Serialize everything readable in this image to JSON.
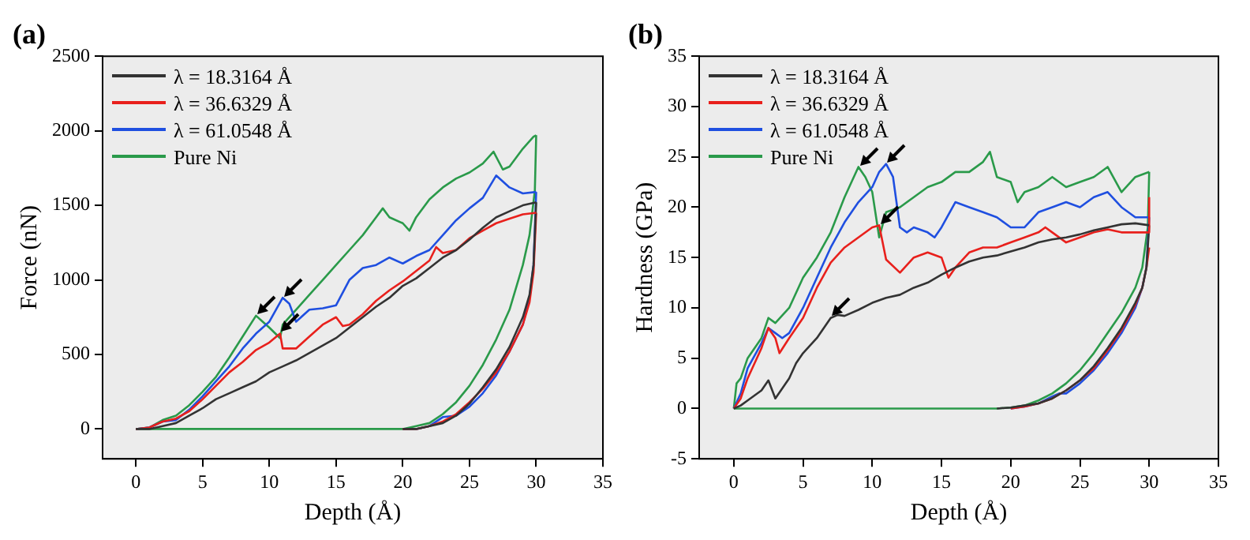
{
  "chart_data": [
    {
      "type": "line",
      "title": "(a)",
      "xlabel": "Depth (Å)",
      "ylabel": "Force (nN)",
      "xlim": [
        -2.5,
        35
      ],
      "xticks": [
        0,
        5,
        10,
        15,
        20,
        25,
        30,
        35
      ],
      "ylim": [
        -200,
        2500
      ],
      "yticks": [
        0,
        500,
        1000,
        1500,
        2000,
        2500
      ],
      "grid": false,
      "legend": "top left",
      "marker": "none",
      "line_style": "solid",
      "series": [
        {
          "name": "λ = 18.3164 Å",
          "color": "#333333",
          "x": [
            0,
            1,
            2,
            3,
            4,
            5,
            6,
            7,
            8,
            9,
            10,
            11,
            12,
            13,
            14,
            15,
            16,
            17,
            18,
            19,
            20,
            21,
            22,
            23,
            24,
            25,
            26,
            27,
            28,
            29,
            30
          ],
          "values": [
            0,
            0,
            20,
            40,
            90,
            140,
            200,
            240,
            280,
            320,
            380,
            420,
            460,
            510,
            560,
            610,
            680,
            750,
            820,
            880,
            960,
            1010,
            1080,
            1150,
            1200,
            1270,
            1350,
            1420,
            1460,
            1500,
            1520
          ]
        },
        {
          "name": "λ = 36.6329 Å",
          "color": "#e8201c",
          "x": [
            0,
            1,
            2,
            3,
            4,
            5,
            6,
            7,
            8,
            9,
            10,
            10.8,
            11,
            12,
            13,
            14,
            15,
            15.5,
            16,
            17,
            18,
            19,
            20,
            21,
            22,
            22.5,
            23,
            24,
            25,
            26,
            27,
            28,
            29,
            30
          ],
          "values": [
            0,
            10,
            50,
            70,
            120,
            200,
            290,
            380,
            450,
            530,
            580,
            640,
            540,
            540,
            620,
            700,
            750,
            690,
            700,
            770,
            860,
            930,
            990,
            1060,
            1130,
            1220,
            1180,
            1200,
            1280,
            1330,
            1380,
            1410,
            1440,
            1450
          ]
        },
        {
          "name": "λ = 61.0548 Å",
          "color": "#1f4fe0",
          "x": [
            0,
            1,
            2,
            3,
            4,
            5,
            6,
            7,
            8,
            9,
            10,
            11,
            11.5,
            12,
            13,
            14,
            15,
            16,
            17,
            18,
            19,
            20,
            21,
            22,
            23,
            24,
            25,
            26,
            27,
            28,
            29,
            30
          ],
          "values": [
            0,
            10,
            50,
            60,
            130,
            220,
            320,
            420,
            540,
            640,
            720,
            880,
            840,
            720,
            800,
            810,
            830,
            1000,
            1080,
            1100,
            1150,
            1110,
            1160,
            1200,
            1300,
            1400,
            1480,
            1550,
            1700,
            1620,
            1580,
            1590
          ]
        },
        {
          "name": "Pure Ni",
          "color": "#2a9a4a",
          "x": [
            0,
            1,
            2,
            3,
            4,
            5,
            6,
            7,
            8,
            9,
            9.5,
            10,
            10.8,
            11,
            12,
            13,
            14,
            15,
            16,
            17,
            18,
            18.5,
            19,
            20,
            20.5,
            21,
            22,
            23,
            24,
            25,
            26,
            26.8,
            27.5,
            28,
            29,
            29.8,
            30
          ],
          "values": [
            0,
            10,
            60,
            90,
            160,
            250,
            350,
            480,
            620,
            760,
            720,
            680,
            610,
            700,
            800,
            900,
            1000,
            1100,
            1200,
            1300,
            1420,
            1480,
            1420,
            1380,
            1330,
            1420,
            1540,
            1620,
            1680,
            1720,
            1780,
            1860,
            1740,
            1760,
            1880,
            1960,
            1970
          ]
        },
        {
          "color": "#333333",
          "x": [
            20,
            21,
            22,
            23,
            24,
            25,
            26,
            27,
            28,
            29,
            29.5,
            29.8,
            30
          ],
          "values": [
            0,
            0,
            20,
            40,
            90,
            170,
            280,
            400,
            550,
            750,
            900,
            1100,
            1520
          ]
        },
        {
          "color": "#e8201c",
          "x": [
            20,
            21,
            22,
            23,
            24,
            25,
            26,
            27,
            28,
            29,
            29.5,
            29.8,
            30
          ],
          "values": [
            0,
            0,
            20,
            50,
            100,
            180,
            270,
            380,
            520,
            700,
            850,
            1050,
            1450
          ]
        },
        {
          "color": "#1f4fe0",
          "x": [
            20,
            21,
            22,
            23,
            24,
            25,
            26,
            27,
            28,
            29,
            29.5,
            29.8,
            30
          ],
          "values": [
            0,
            0,
            20,
            80,
            90,
            150,
            240,
            360,
            520,
            700,
            880,
            1100,
            1590
          ]
        },
        {
          "color": "#2a9a4a",
          "x": [
            0,
            19,
            20,
            21,
            22,
            23,
            24,
            25,
            26,
            27,
            28,
            29,
            29.5,
            29.9,
            30
          ],
          "values": [
            0,
            0,
            0,
            20,
            40,
            100,
            180,
            290,
            430,
            600,
            800,
            1100,
            1300,
            1600,
            1970
          ]
        }
      ]
    },
    {
      "type": "line",
      "title": "(b)",
      "xlabel": "Depth (Å)",
      "ylabel": "Hardness (GPa)",
      "xlim": [
        -2.5,
        35
      ],
      "xticks": [
        0,
        5,
        10,
        15,
        20,
        25,
        30,
        35
      ],
      "ylim": [
        -5,
        35
      ],
      "yticks": [
        -5,
        0,
        5,
        10,
        15,
        20,
        25,
        30,
        35
      ],
      "grid": false,
      "legend": "top left",
      "marker": "none",
      "line_style": "solid",
      "series": [
        {
          "name": "λ = 18.3164 Å",
          "color": "#333333",
          "x": [
            0,
            0.5,
            1,
            2,
            2.5,
            3,
            4,
            4.5,
            5,
            6,
            7,
            7.5,
            8,
            9,
            10,
            11,
            12,
            13,
            14,
            15,
            16,
            17,
            18,
            19,
            20,
            21,
            22,
            23,
            24,
            25,
            26,
            27,
            28,
            29,
            30
          ],
          "values": [
            0,
            0.3,
            0.8,
            1.8,
            2.8,
            1,
            3,
            4.5,
            5.5,
            7,
            9,
            9.3,
            9.2,
            9.8,
            10.5,
            11,
            11.3,
            12,
            12.5,
            13.3,
            14,
            14.6,
            15,
            15.2,
            15.6,
            16,
            16.5,
            16.8,
            17,
            17.3,
            17.7,
            18,
            18.3,
            18.4,
            18.2
          ]
        },
        {
          "name": "λ = 36.6329 Å",
          "color": "#e8201c",
          "x": [
            0,
            0.5,
            1,
            2,
            2.5,
            3,
            3.3,
            4,
            5,
            6,
            7,
            8,
            9,
            10,
            10.5,
            11,
            12,
            13,
            14,
            15,
            15.5,
            16,
            17,
            18,
            19,
            20,
            21,
            22,
            22.5,
            23,
            24,
            25,
            26,
            27,
            28,
            29,
            30,
            30
          ],
          "values": [
            0,
            1,
            3,
            6,
            8,
            7,
            5.5,
            7,
            9,
            12,
            14.5,
            16,
            17,
            18,
            18.2,
            14.8,
            13.5,
            15,
            15.5,
            15,
            13,
            14,
            15.5,
            16,
            16,
            16.5,
            17,
            17.5,
            18,
            17.5,
            16.5,
            17,
            17.5,
            17.8,
            17.5,
            17.5,
            17.5,
            21
          ]
        },
        {
          "name": "λ = 61.0548 Å",
          "color": "#1f4fe0",
          "x": [
            0,
            0.5,
            1,
            2,
            2.5,
            3,
            3.5,
            4,
            5,
            6,
            7,
            8,
            9,
            10,
            10.5,
            11,
            11.5,
            12,
            12.5,
            13,
            14,
            14.5,
            15,
            16,
            17,
            18,
            19,
            20,
            21,
            22,
            23,
            24,
            25,
            26,
            27,
            28,
            29,
            30
          ],
          "values": [
            0,
            1.5,
            4,
            6.5,
            8,
            7.5,
            7,
            7.5,
            10,
            13,
            16,
            18.5,
            20.5,
            22,
            23.5,
            24.3,
            23,
            18,
            17.5,
            18,
            17.5,
            17,
            18,
            20.5,
            20,
            19.5,
            19,
            18,
            18,
            19.5,
            20,
            20.5,
            20,
            21,
            21.5,
            20,
            19,
            19
          ]
        },
        {
          "name": "Pure Ni",
          "color": "#2a9a4a",
          "x": [
            0,
            0.2,
            0.5,
            1,
            2,
            2.5,
            3,
            4,
            5,
            6,
            7,
            8,
            9,
            9.5,
            10,
            10.5,
            11,
            12,
            13,
            14,
            15,
            16,
            17,
            18,
            18.5,
            19,
            20,
            20.5,
            21,
            22,
            23,
            24,
            25,
            26,
            27,
            28,
            29,
            30
          ],
          "values": [
            0,
            2.5,
            3,
            5,
            7,
            9,
            8.5,
            10,
            13,
            15,
            17.5,
            21,
            24,
            23,
            21.5,
            17,
            19.5,
            20,
            21,
            22,
            22.5,
            23.5,
            23.5,
            24.5,
            25.5,
            23,
            22.5,
            20.5,
            21.5,
            22,
            23,
            22,
            22.5,
            23,
            24,
            21.5,
            23,
            23.5
          ]
        },
        {
          "color": "#333333",
          "x": [
            19,
            20,
            21,
            22,
            23,
            24,
            25,
            26,
            27,
            28,
            29,
            29.5,
            29.8,
            30
          ],
          "values": [
            0,
            0.1,
            0.3,
            0.5,
            1,
            1.8,
            2.8,
            4.2,
            6,
            8,
            10.5,
            12,
            14,
            18.2
          ]
        },
        {
          "color": "#e8201c",
          "x": [
            20,
            21,
            22,
            23,
            24,
            25,
            26,
            27,
            28,
            29,
            29.5,
            29.8,
            30
          ],
          "values": [
            0,
            0.2,
            0.5,
            1,
            1.8,
            2.8,
            4,
            5.8,
            7.8,
            10.3,
            12,
            14,
            16
          ]
        },
        {
          "color": "#1f4fe0",
          "x": [
            20,
            21,
            22,
            23,
            23.5,
            24,
            25,
            26,
            27,
            28,
            29,
            29.5,
            29.8,
            30
          ],
          "values": [
            0,
            0.2,
            0.5,
            1.2,
            1.5,
            1.5,
            2.5,
            3.8,
            5.5,
            7.5,
            10,
            12,
            14,
            19
          ]
        },
        {
          "color": "#2a9a4a",
          "x": [
            0,
            19,
            20,
            21,
            22,
            23,
            24,
            25,
            26,
            27,
            28,
            29,
            29.5,
            29.9,
            30
          ],
          "values": [
            0,
            0,
            0.1,
            0.3,
            0.8,
            1.5,
            2.5,
            3.8,
            5.5,
            7.5,
            9.5,
            12,
            14,
            18,
            23.5
          ]
        }
      ]
    }
  ]
}
